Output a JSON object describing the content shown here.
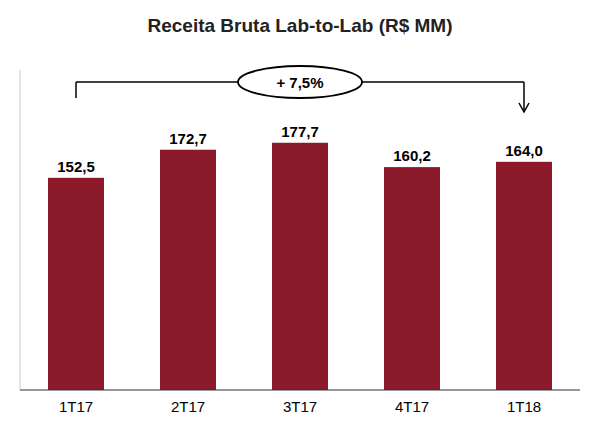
{
  "chart_data": {
    "type": "bar",
    "title": "Receita Bruta Lab-to-Lab (R$ MM)",
    "categories": [
      "1T17",
      "2T17",
      "3T17",
      "4T17",
      "1T18"
    ],
    "values": [
      152.5,
      172.7,
      177.7,
      160.2,
      164.0
    ],
    "value_labels": [
      "152,5",
      "172,7",
      "177,7",
      "160,2",
      "164,0"
    ],
    "color": "#8B1A2A",
    "ylim": [
      0,
      230
    ],
    "grid": false,
    "data_labels": true,
    "tick_labels": "x",
    "annotation": "+ 7,5%"
  }
}
